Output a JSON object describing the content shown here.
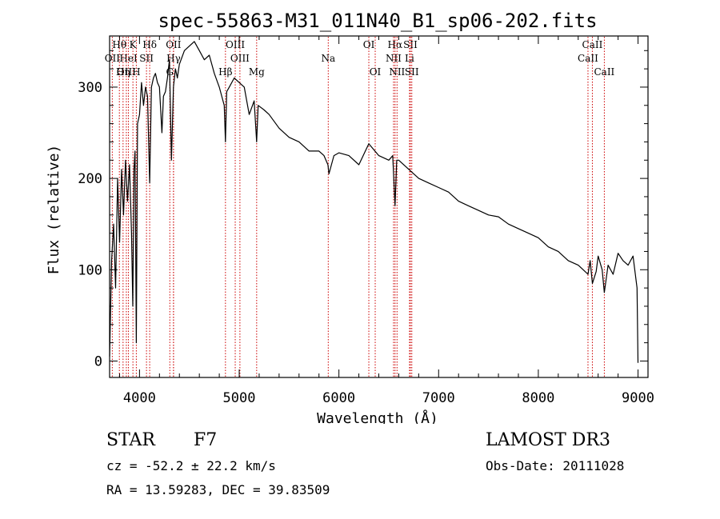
{
  "chart_data": {
    "type": "line",
    "title": "spec-55863-M31_011N40_B1_sp06-202.fits",
    "xlabel": "Wavelength (Å)",
    "ylabel": "Flux (relative)",
    "xlim": [
      3700,
      9100
    ],
    "ylim": [
      -18,
      356
    ],
    "xticks": [
      4000,
      5000,
      6000,
      7000,
      8000,
      9000
    ],
    "yticks": [
      0,
      100,
      200,
      300
    ],
    "series": [
      {
        "name": "spectrum",
        "x": [
          3700,
          3720,
          3740,
          3760,
          3780,
          3800,
          3820,
          3840,
          3860,
          3880,
          3900,
          3920,
          3933,
          3945,
          3955,
          3968,
          3980,
          4000,
          4020,
          4040,
          4060,
          4080,
          4102,
          4120,
          4140,
          4160,
          4180,
          4200,
          4225,
          4240,
          4260,
          4280,
          4300,
          4320,
          4340,
          4360,
          4380,
          4400,
          4450,
          4500,
          4550,
          4600,
          4650,
          4700,
          4750,
          4800,
          4850,
          4862,
          4875,
          4900,
          4950,
          5000,
          5050,
          5100,
          5150,
          5175,
          5190,
          5250,
          5300,
          5400,
          5500,
          5600,
          5700,
          5800,
          5850,
          5890,
          5900,
          5950,
          6000,
          6100,
          6200,
          6300,
          6400,
          6500,
          6540,
          6563,
          6580,
          6600,
          6700,
          6800,
          6900,
          7000,
          7100,
          7200,
          7300,
          7400,
          7500,
          7600,
          7700,
          7800,
          7900,
          8000,
          8100,
          8200,
          8300,
          8400,
          8450,
          8498,
          8520,
          8542,
          8580,
          8600,
          8640,
          8662,
          8700,
          8750,
          8800,
          8850,
          8900,
          8950,
          8990,
          9000
        ],
        "y": [
          5,
          110,
          150,
          80,
          200,
          130,
          210,
          160,
          220,
          175,
          215,
          140,
          60,
          210,
          230,
          20,
          260,
          270,
          305,
          280,
          300,
          290,
          195,
          300,
          310,
          315,
          305,
          300,
          250,
          290,
          295,
          310,
          330,
          220,
          300,
          320,
          310,
          325,
          340,
          345,
          350,
          340,
          330,
          335,
          315,
          300,
          280,
          240,
          295,
          300,
          310,
          305,
          300,
          270,
          285,
          240,
          280,
          275,
          270,
          255,
          245,
          240,
          230,
          230,
          225,
          215,
          205,
          225,
          228,
          225,
          215,
          238,
          225,
          220,
          225,
          170,
          220,
          220,
          210,
          200,
          195,
          190,
          185,
          175,
          170,
          165,
          160,
          158,
          150,
          145,
          140,
          135,
          125,
          120,
          110,
          105,
          100,
          95,
          110,
          85,
          98,
          115,
          100,
          75,
          105,
          95,
          118,
          110,
          105,
          115,
          80,
          -2
        ]
      }
    ],
    "line_markers": [
      {
        "label": "Hθ",
        "wave": 3798,
        "row": 0
      },
      {
        "label": "K",
        "wave": 3934,
        "row": 0
      },
      {
        "label": "Hδ",
        "wave": 4102,
        "row": 0
      },
      {
        "label": "OII",
        "wave": 4341,
        "row": 0
      },
      {
        "label": "OIII",
        "wave": 4960,
        "row": 0
      },
      {
        "label": "OI",
        "wave": 6300,
        "row": 0
      },
      {
        "label": "Hα",
        "wave": 6563,
        "row": 0
      },
      {
        "label": "SII",
        "wave": 6717,
        "row": 0
      },
      {
        "label": "CaII",
        "wave": 8542,
        "row": 0
      },
      {
        "label": "OII",
        "wave": 3727,
        "row": 1
      },
      {
        "label": "HeI",
        "wave": 3889,
        "row": 1
      },
      {
        "label": "SII",
        "wave": 4070,
        "row": 1
      },
      {
        "label": "Hγ",
        "wave": 4341,
        "row": 1
      },
      {
        "label": "OIII",
        "wave": 5007,
        "row": 1
      },
      {
        "label": "Na",
        "wave": 5893,
        "row": 1
      },
      {
        "label": "NII",
        "wave": 6548,
        "row": 1
      },
      {
        "label": "Li",
        "wave": 6708,
        "row": 1
      },
      {
        "label": "CaII",
        "wave": 8498,
        "row": 1
      },
      {
        "label": "OIII",
        "wave": 3868,
        "row": 2
      },
      {
        "label": "Hη",
        "wave": 3835,
        "row": 2
      },
      {
        "label": "H",
        "wave": 3968,
        "row": 2
      },
      {
        "label": "G",
        "wave": 4304,
        "row": 2
      },
      {
        "label": "Hβ",
        "wave": 4862,
        "row": 2
      },
      {
        "label": "Mg",
        "wave": 5175,
        "row": 2
      },
      {
        "label": "OI",
        "wave": 6364,
        "row": 2
      },
      {
        "label": "NII",
        "wave": 6583,
        "row": 2
      },
      {
        "label": "SII",
        "wave": 6731,
        "row": 2
      },
      {
        "label": "CaII",
        "wave": 8662,
        "row": 2
      }
    ]
  },
  "info": {
    "class": "STAR",
    "subclass": "F7",
    "cz": "cz = -52.2 ± 22.2 km/s",
    "coords": "RA =  13.59283, DEC =  39.83509",
    "survey": "LAMOST DR3",
    "obs_date": "Obs-Date: 20111028"
  },
  "colors": {
    "line_marker": "#cc0000",
    "spectrum": "#000000",
    "axis": "#000000"
  }
}
